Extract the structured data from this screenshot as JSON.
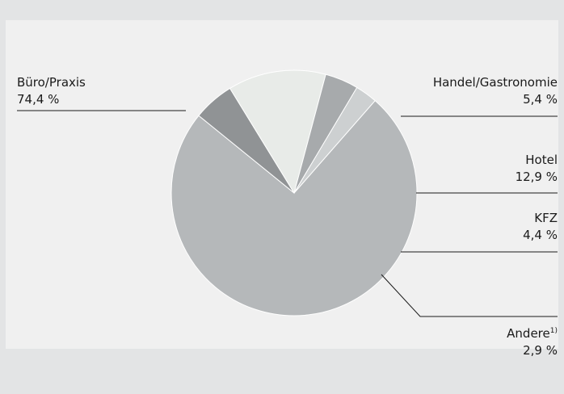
{
  "chart_data": {
    "type": "pie",
    "slices": [
      {
        "label": "Büro/Praxis",
        "value": 74.4,
        "display": "74,4 %",
        "color": "#b5b8ba"
      },
      {
        "label": "Handel/Gastronomie",
        "value": 5.4,
        "display": "5,4 %",
        "color": "#909395"
      },
      {
        "label": "Hotel",
        "value": 12.9,
        "display": "12,9 %",
        "color": "#e8ebe8"
      },
      {
        "label": "KFZ",
        "value": 4.4,
        "display": "4,4 %",
        "color": "#a7aaac"
      },
      {
        "label": "Andere",
        "label_sup": "1)",
        "value": 2.9,
        "display": "2,9 %",
        "color": "#cdd0d1"
      }
    ]
  }
}
